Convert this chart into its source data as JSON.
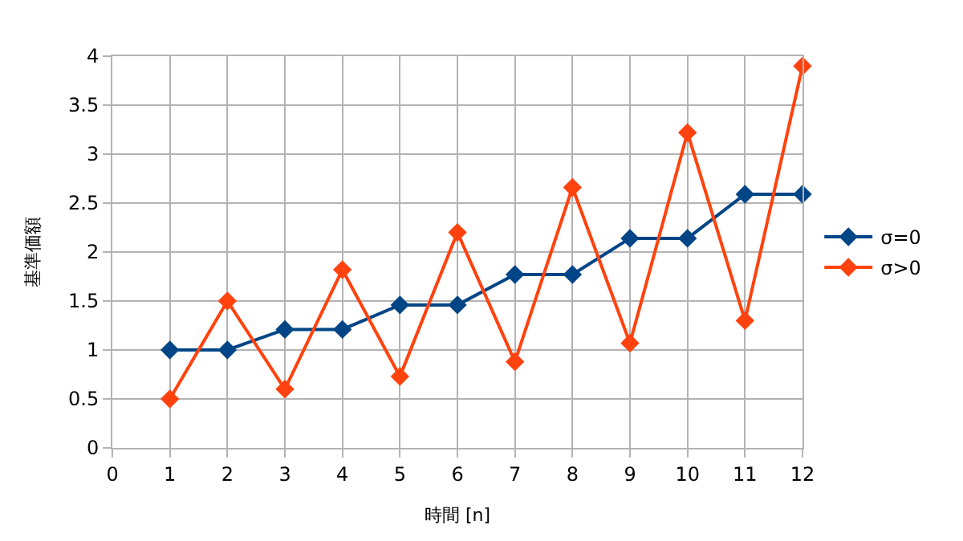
{
  "chart_data": {
    "type": "line",
    "xlabel": "時間 [n]",
    "ylabel": "基準価額",
    "x": [
      1,
      2,
      3,
      4,
      5,
      6,
      7,
      8,
      9,
      10,
      11,
      12
    ],
    "series": [
      {
        "name": "σ=0",
        "color": "#004586",
        "values": [
          1,
          1,
          1.21,
          1.21,
          1.46,
          1.46,
          1.77,
          1.77,
          2.14,
          2.14,
          2.59,
          2.59
        ]
      },
      {
        "name": "σ>0",
        "color": "#ff420e",
        "values": [
          0.5,
          1.5,
          0.6,
          1.82,
          0.73,
          2.2,
          0.88,
          2.66,
          1.07,
          3.22,
          1.3,
          3.9
        ]
      }
    ],
    "xlim": [
      0,
      12
    ],
    "xticks": [
      0,
      1,
      2,
      3,
      4,
      5,
      6,
      7,
      8,
      9,
      10,
      11,
      12
    ],
    "ylim": [
      0,
      4
    ],
    "yticks": [
      0,
      0.5,
      1,
      1.5,
      2,
      2.5,
      3,
      3.5,
      4
    ],
    "grid": true,
    "legend": "right",
    "marker": "diamond",
    "line_style": "solid"
  }
}
